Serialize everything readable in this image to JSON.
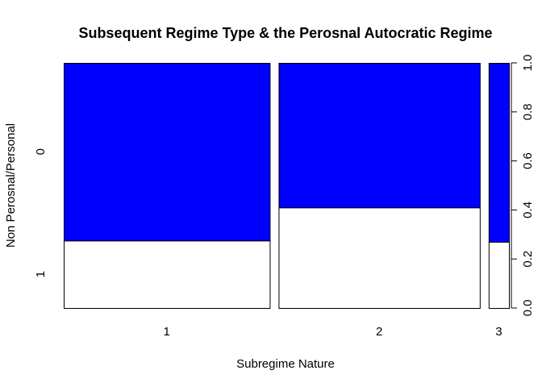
{
  "chart_data": {
    "type": "bar",
    "subtype": "spineplot",
    "title": "Subsequent Regime Type & the Perosnal Autocratic Regime",
    "xlabel": "Subregime Nature",
    "ylabel": "Non Perosnal/Personal",
    "categories": [
      "1",
      "2",
      "3"
    ],
    "category_widths": [
      0.467,
      0.456,
      0.046
    ],
    "series": [
      {
        "name": "0",
        "values": [
          0.725,
          0.59,
          0.73
        ]
      },
      {
        "name": "1",
        "values": [
          0.275,
          0.41,
          0.27
        ]
      }
    ],
    "left_axis_labels": [
      "0",
      "1"
    ],
    "right_axis_ticks": [
      "0.0",
      "0.2",
      "0.4",
      "0.6",
      "0.8",
      "1.0"
    ],
    "ylim": [
      0,
      1
    ],
    "colors": {
      "0": "#0000ff",
      "1": "#ffffff"
    }
  }
}
